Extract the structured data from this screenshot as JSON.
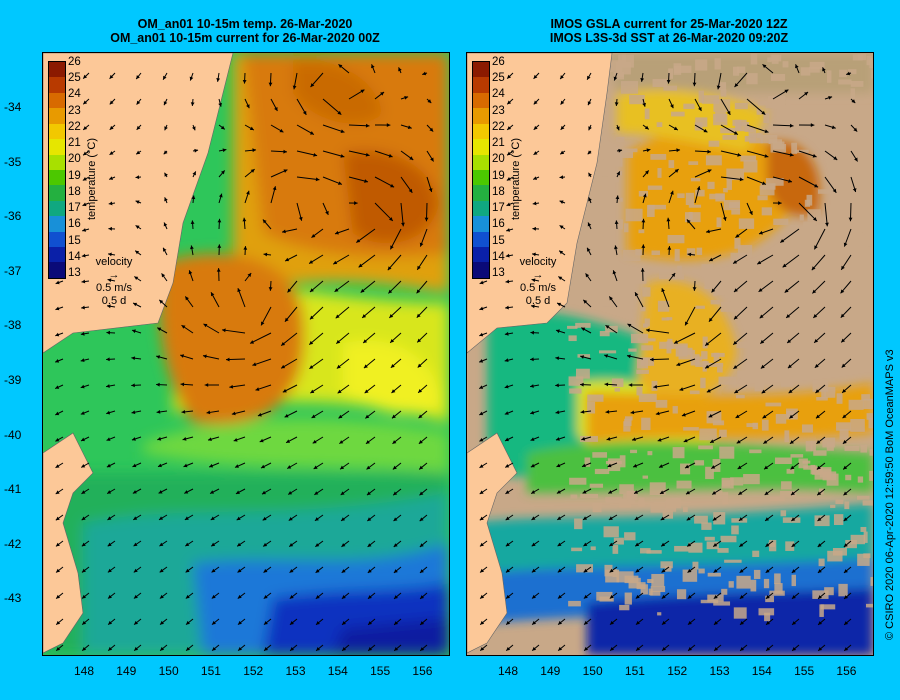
{
  "left_title": [
    "OM_an01 10-15m temp. 26-Mar-2020",
    "OM_an01 10-15m current for 26-Mar-2020 00Z"
  ],
  "right_title": [
    "IMOS GSLA current for 25-Mar-2020 12Z",
    "IMOS L3S-3d SST at 26-Mar-2020 09:20Z"
  ],
  "lat_ticks": [
    "-34",
    "-35",
    "-36",
    "-37",
    "-38",
    "-39",
    "-40",
    "-41",
    "-42",
    "-43"
  ],
  "lon_ticks": [
    "148",
    "149",
    "150",
    "151",
    "152",
    "153",
    "154",
    "155",
    "156"
  ],
  "colorbar": {
    "labels": [
      "26",
      "25",
      "24",
      "23",
      "22",
      "21",
      "20",
      "19",
      "18",
      "17",
      "16",
      "15",
      "14",
      "13"
    ],
    "title": "temperature (°C)",
    "colors": [
      "#8b1a00",
      "#b83a00",
      "#d86a00",
      "#e89a00",
      "#f2c800",
      "#e6e600",
      "#a8e000",
      "#4cc800",
      "#24b040",
      "#10a880",
      "#1890d8",
      "#1050d0",
      "#0a20a8",
      "#0a0a78"
    ]
  },
  "velocity": {
    "label": "velocity",
    "speed": "0.5 m/s",
    "duration": "0.5 d"
  },
  "credit": "© CSIRO 2020  06-Apr-2020 12:59:50 BoM OceanMAPS v3"
}
